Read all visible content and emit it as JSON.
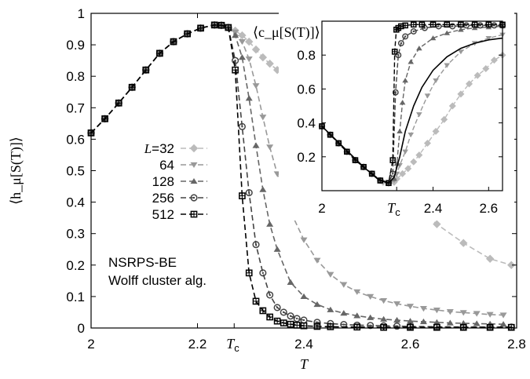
{
  "chart_data": {
    "type": "line",
    "title": "",
    "xlabel": "T",
    "ylabel": "⟨h_μ[S(T)]⟩",
    "xlim": [
      2.0,
      2.8
    ],
    "ylim": [
      0,
      1.0
    ],
    "xticks": [
      "2",
      "2.2",
      "2.4",
      "2.6",
      "2.8"
    ],
    "x_tick_values": [
      2.0,
      2.2,
      2.4,
      2.6,
      2.8
    ],
    "yticks": [
      "0",
      "0.1",
      "0.2",
      "0.3",
      "0.4",
      "0.5",
      "0.6",
      "0.7",
      "0.8",
      "0.9",
      "1"
    ],
    "y_tick_values": [
      0,
      0.1,
      0.2,
      0.3,
      0.4,
      0.5,
      0.6,
      0.7,
      0.8,
      0.9,
      1.0
    ],
    "tc_label": "T",
    "tc_sub": "c",
    "tc_value": 2.269,
    "grid": false,
    "legend": "left",
    "legend_label_prefix": "L",
    "series": [
      {
        "name": "=32",
        "color": "#bbbbbb",
        "marker": "diamond",
        "x": [
          2.0,
          2.026,
          2.052,
          2.077,
          2.103,
          2.129,
          2.155,
          2.181,
          2.206,
          2.232,
          2.245,
          2.258,
          2.271,
          2.284,
          2.297,
          2.31,
          2.323,
          2.336,
          2.35,
          2.375,
          2.4,
          2.45,
          2.5,
          2.55,
          2.6,
          2.65,
          2.7,
          2.75,
          2.79
        ],
        "y": [
          0.62,
          0.665,
          0.715,
          0.765,
          0.82,
          0.873,
          0.91,
          0.935,
          0.953,
          0.963,
          0.962,
          0.955,
          0.945,
          0.93,
          0.91,
          0.885,
          0.86,
          0.84,
          0.82,
          0.78,
          0.73,
          0.65,
          0.56,
          0.48,
          0.4,
          0.33,
          0.27,
          0.22,
          0.2
        ]
      },
      {
        "name": "64",
        "color": "#999999",
        "marker": "tri-down",
        "x": [
          2.0,
          2.026,
          2.052,
          2.077,
          2.103,
          2.129,
          2.155,
          2.181,
          2.206,
          2.232,
          2.245,
          2.258,
          2.271,
          2.284,
          2.297,
          2.31,
          2.323,
          2.336,
          2.35,
          2.375,
          2.4,
          2.425,
          2.45,
          2.475,
          2.5,
          2.525,
          2.55,
          2.575,
          2.6,
          2.625,
          2.65,
          2.675,
          2.7,
          2.725,
          2.75,
          2.775
        ],
        "y": [
          0.62,
          0.665,
          0.715,
          0.765,
          0.82,
          0.873,
          0.91,
          0.935,
          0.953,
          0.963,
          0.962,
          0.955,
          0.94,
          0.91,
          0.855,
          0.77,
          0.67,
          0.575,
          0.49,
          0.37,
          0.28,
          0.215,
          0.17,
          0.138,
          0.115,
          0.1,
          0.087,
          0.077,
          0.069,
          0.062,
          0.057,
          0.052,
          0.049,
          0.046,
          0.043,
          0.041
        ]
      },
      {
        "name": "128",
        "color": "#666666",
        "marker": "tri-up",
        "x": [
          2.0,
          2.026,
          2.052,
          2.077,
          2.103,
          2.129,
          2.155,
          2.181,
          2.206,
          2.232,
          2.245,
          2.258,
          2.271,
          2.284,
          2.297,
          2.31,
          2.323,
          2.336,
          2.35,
          2.375,
          2.4,
          2.425,
          2.45,
          2.475,
          2.5,
          2.525,
          2.55,
          2.575,
          2.6,
          2.625,
          2.65,
          2.675,
          2.7,
          2.725,
          2.75,
          2.775
        ],
        "y": [
          0.62,
          0.665,
          0.715,
          0.765,
          0.82,
          0.873,
          0.91,
          0.935,
          0.953,
          0.963,
          0.962,
          0.955,
          0.93,
          0.86,
          0.73,
          0.58,
          0.44,
          0.33,
          0.25,
          0.145,
          0.1,
          0.075,
          0.058,
          0.047,
          0.039,
          0.033,
          0.028,
          0.025,
          0.022,
          0.02,
          0.018,
          0.016,
          0.015,
          0.014,
          0.013,
          0.012
        ]
      },
      {
        "name": "256",
        "color": "#444444",
        "marker": "circle",
        "x": [
          2.0,
          2.026,
          2.052,
          2.077,
          2.103,
          2.129,
          2.155,
          2.181,
          2.206,
          2.232,
          2.245,
          2.258,
          2.271,
          2.284,
          2.297,
          2.31,
          2.323,
          2.336,
          2.35,
          2.362,
          2.375,
          2.387,
          2.4,
          2.425,
          2.45,
          2.475,
          2.5,
          2.525,
          2.55,
          2.575,
          2.6,
          2.65,
          2.7,
          2.75,
          2.79
        ],
        "y": [
          0.62,
          0.665,
          0.715,
          0.765,
          0.82,
          0.873,
          0.91,
          0.935,
          0.953,
          0.963,
          0.962,
          0.955,
          0.85,
          0.64,
          0.43,
          0.265,
          0.175,
          0.105,
          0.065,
          0.05,
          0.038,
          0.03,
          0.025,
          0.018,
          0.014,
          0.011,
          0.009,
          0.008,
          0.007,
          0.006,
          0.005,
          0.004,
          0.003,
          0.003,
          0.003
        ]
      },
      {
        "name": "512",
        "color": "#000000",
        "marker": "square",
        "x": [
          2.0,
          2.026,
          2.052,
          2.077,
          2.103,
          2.129,
          2.155,
          2.181,
          2.206,
          2.232,
          2.245,
          2.258,
          2.271,
          2.284,
          2.297,
          2.31,
          2.323,
          2.336,
          2.35,
          2.362,
          2.375,
          2.387,
          2.4,
          2.425,
          2.45,
          2.5,
          2.55,
          2.6,
          2.65,
          2.7,
          2.75,
          2.79
        ],
        "y": [
          0.62,
          0.665,
          0.715,
          0.765,
          0.82,
          0.873,
          0.91,
          0.935,
          0.953,
          0.963,
          0.962,
          0.955,
          0.82,
          0.42,
          0.175,
          0.085,
          0.055,
          0.035,
          0.022,
          0.016,
          0.012,
          0.009,
          0.007,
          0.005,
          0.004,
          0.003,
          0.002,
          0.002,
          0.002,
          0.002,
          0.002,
          0.002
        ]
      }
    ],
    "inset": {
      "type": "line",
      "ylabel": "⟨c_μ[S(T)]⟩",
      "xlim": [
        2.0,
        2.65
      ],
      "ylim": [
        0,
        1.0
      ],
      "xticks": [
        "2",
        "2.4",
        "2.6"
      ],
      "x_tick_values": [
        2.0,
        2.4,
        2.6
      ],
      "yticks": [
        "0.2",
        "0.4",
        "0.6",
        "0.8"
      ],
      "y_tick_values": [
        0.2,
        0.4,
        0.6,
        0.8
      ],
      "series": [
        {
          "name": "=32",
          "color": "#bbbbbb",
          "marker": "diamond",
          "x": [
            2.0,
            2.03,
            2.06,
            2.09,
            2.12,
            2.15,
            2.18,
            2.21,
            2.22,
            2.24,
            2.26,
            2.27,
            2.29,
            2.31,
            2.33,
            2.35,
            2.38,
            2.41,
            2.44,
            2.47,
            2.5,
            2.53,
            2.56,
            2.59,
            2.62,
            2.65
          ],
          "y": [
            0.38,
            0.33,
            0.28,
            0.23,
            0.18,
            0.14,
            0.1,
            0.06,
            0.05,
            0.045,
            0.05,
            0.07,
            0.1,
            0.13,
            0.17,
            0.21,
            0.28,
            0.35,
            0.42,
            0.5,
            0.57,
            0.63,
            0.68,
            0.72,
            0.77,
            0.8
          ]
        },
        {
          "name": "64",
          "color": "#999999",
          "marker": "tri-down",
          "x": [
            2.0,
            2.03,
            2.06,
            2.09,
            2.12,
            2.15,
            2.18,
            2.21,
            2.24,
            2.26,
            2.27,
            2.28,
            2.3,
            2.32,
            2.35,
            2.38,
            2.41,
            2.45,
            2.5,
            2.55,
            2.6,
            2.65
          ],
          "y": [
            0.38,
            0.33,
            0.28,
            0.23,
            0.18,
            0.14,
            0.1,
            0.06,
            0.045,
            0.06,
            0.1,
            0.15,
            0.23,
            0.33,
            0.45,
            0.56,
            0.65,
            0.74,
            0.82,
            0.87,
            0.9,
            0.92
          ]
        },
        {
          "name": "128",
          "color": "#666666",
          "marker": "tri-up",
          "x": [
            2.0,
            2.03,
            2.06,
            2.09,
            2.12,
            2.15,
            2.18,
            2.21,
            2.24,
            2.26,
            2.27,
            2.28,
            2.29,
            2.3,
            2.32,
            2.35,
            2.4,
            2.45,
            2.5,
            2.55,
            2.6,
            2.65
          ],
          "y": [
            0.38,
            0.33,
            0.28,
            0.23,
            0.18,
            0.14,
            0.1,
            0.06,
            0.045,
            0.07,
            0.16,
            0.35,
            0.52,
            0.65,
            0.76,
            0.84,
            0.9,
            0.93,
            0.95,
            0.96,
            0.965,
            0.97
          ]
        },
        {
          "name": "256",
          "color": "#444444",
          "marker": "circle",
          "x": [
            2.0,
            2.03,
            2.06,
            2.09,
            2.12,
            2.15,
            2.18,
            2.21,
            2.24,
            2.255,
            2.265,
            2.275,
            2.285,
            2.3,
            2.33,
            2.37,
            2.42,
            2.47,
            2.52,
            2.57,
            2.62,
            2.65
          ],
          "y": [
            0.38,
            0.33,
            0.28,
            0.23,
            0.18,
            0.14,
            0.1,
            0.06,
            0.045,
            0.1,
            0.58,
            0.8,
            0.87,
            0.91,
            0.94,
            0.96,
            0.97,
            0.97,
            0.975,
            0.975,
            0.975,
            0.975
          ]
        },
        {
          "name": "512",
          "color": "#000000",
          "marker": "square",
          "x": [
            2.0,
            2.03,
            2.06,
            2.09,
            2.12,
            2.15,
            2.18,
            2.21,
            2.24,
            2.255,
            2.262,
            2.268,
            2.275,
            2.285,
            2.3,
            2.33,
            2.36,
            2.4,
            2.45,
            2.5,
            2.55,
            2.6,
            2.65
          ],
          "y": [
            0.38,
            0.33,
            0.28,
            0.23,
            0.18,
            0.14,
            0.1,
            0.06,
            0.045,
            0.18,
            0.82,
            0.95,
            0.96,
            0.97,
            0.975,
            0.98,
            0.98,
            0.98,
            0.98,
            0.98,
            0.98,
            0.98,
            0.98
          ]
        }
      ],
      "fit_curves": [
        {
          "color": "#000000",
          "x": [
            2.21,
            2.24,
            2.26,
            2.28,
            2.3,
            2.33,
            2.36,
            2.4,
            2.45,
            2.5,
            2.55,
            2.6,
            2.65
          ],
          "y": [
            0.06,
            0.045,
            0.08,
            0.2,
            0.35,
            0.5,
            0.61,
            0.71,
            0.79,
            0.84,
            0.87,
            0.89,
            0.9
          ]
        },
        {
          "color": "#000000",
          "x": [
            2.0,
            2.05,
            2.1,
            2.15,
            2.2,
            2.24
          ],
          "y": [
            0.38,
            0.3,
            0.22,
            0.14,
            0.07,
            0.045
          ]
        }
      ]
    },
    "annotations": [
      "NSRPS-BE",
      "Wolff cluster alg."
    ]
  }
}
